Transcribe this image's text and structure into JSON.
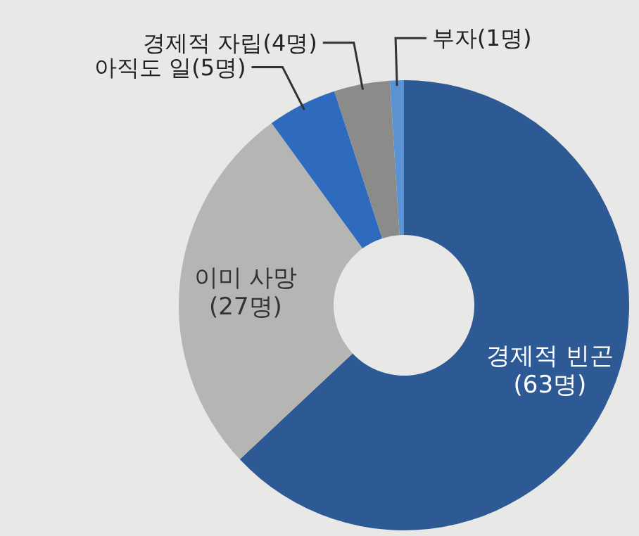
{
  "chart_data": {
    "type": "donut",
    "categories": [
      "경제적 빈곤",
      "이미 사망",
      "아직도 일",
      "경제적 자립",
      "부자"
    ],
    "values": [
      63,
      27,
      5,
      4,
      1
    ],
    "value_labels": [
      "(63명)",
      "(27명)",
      "(5명)",
      "(4명)",
      "(1명)"
    ],
    "colors": [
      "#2d5994",
      "#b5b5b3",
      "#2e6bbf",
      "#8b8b89",
      "#5a92d4"
    ],
    "legend": false
  }
}
